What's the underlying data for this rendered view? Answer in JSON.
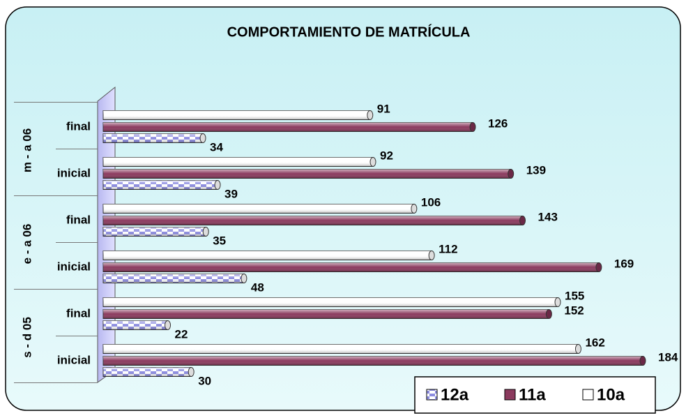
{
  "chart_data": {
    "type": "bar",
    "orientation": "horizontal",
    "title": "COMPORTAMIENTO DE MATRÍCULA",
    "groups": [
      "s - d 05",
      "e - a 06",
      "m - a 06"
    ],
    "categories": [
      "inicial",
      "final",
      "inicial",
      "final",
      "inicial",
      "final"
    ],
    "series": [
      {
        "name": "12a",
        "color": "#8c8ce0",
        "values": [
          30,
          22,
          48,
          35,
          39,
          34
        ]
      },
      {
        "name": "11a",
        "color": "#8b3a5e",
        "values": [
          184,
          152,
          169,
          143,
          139,
          126
        ]
      },
      {
        "name": "10a",
        "color": "#ffffff",
        "values": [
          162,
          155,
          112,
          106,
          92,
          91
        ]
      }
    ],
    "legend": "bottom-right"
  }
}
